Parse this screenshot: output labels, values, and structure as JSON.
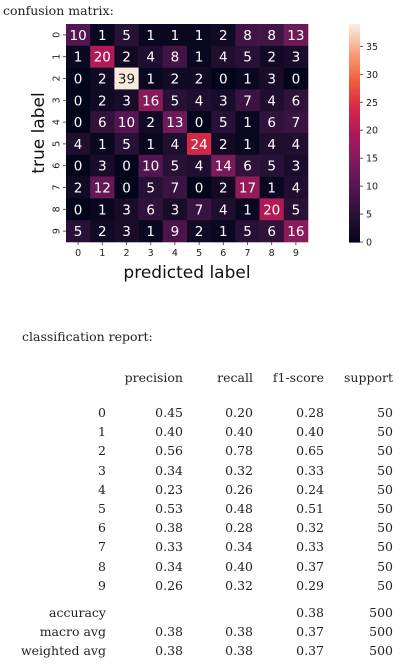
{
  "cm_caption": "confusion matrix:",
  "report_caption": "classification report:",
  "chart_data": {
    "type": "heatmap",
    "title": "",
    "xlabel": "predicted label",
    "ylabel": "true label",
    "x_categories": [
      "0",
      "1",
      "2",
      "3",
      "4",
      "5",
      "6",
      "7",
      "8",
      "9"
    ],
    "y_categories": [
      "0",
      "1",
      "2",
      "3",
      "4",
      "5",
      "6",
      "7",
      "8",
      "9"
    ],
    "matrix": [
      [
        10,
        1,
        5,
        1,
        1,
        1,
        2,
        8,
        8,
        13
      ],
      [
        1,
        20,
        2,
        4,
        8,
        1,
        4,
        5,
        2,
        3
      ],
      [
        0,
        2,
        39,
        1,
        2,
        2,
        0,
        1,
        3,
        0
      ],
      [
        0,
        2,
        3,
        16,
        5,
        4,
        3,
        7,
        4,
        6
      ],
      [
        0,
        6,
        10,
        2,
        13,
        0,
        5,
        1,
        6,
        7
      ],
      [
        4,
        1,
        5,
        1,
        4,
        24,
        2,
        1,
        4,
        4
      ],
      [
        0,
        3,
        0,
        10,
        5,
        4,
        14,
        6,
        5,
        3
      ],
      [
        2,
        12,
        0,
        5,
        7,
        0,
        2,
        17,
        1,
        4
      ],
      [
        0,
        1,
        3,
        6,
        3,
        7,
        4,
        1,
        20,
        5
      ],
      [
        5,
        2,
        3,
        1,
        9,
        2,
        1,
        5,
        6,
        16
      ]
    ],
    "colorbar": {
      "min": 0,
      "max": 39,
      "ticks": [
        0,
        5,
        10,
        15,
        20,
        25,
        30,
        35
      ],
      "colormap": "rocket",
      "low_color": "#03051a",
      "high_color": "#faebdd"
    }
  },
  "report": {
    "headers": [
      "precision",
      "recall",
      "f1-score",
      "support"
    ],
    "rows": [
      {
        "label": "0",
        "precision": "0.45",
        "recall": "0.20",
        "f1": "0.28",
        "support": "50"
      },
      {
        "label": "1",
        "precision": "0.40",
        "recall": "0.40",
        "f1": "0.40",
        "support": "50"
      },
      {
        "label": "2",
        "precision": "0.56",
        "recall": "0.78",
        "f1": "0.65",
        "support": "50"
      },
      {
        "label": "3",
        "precision": "0.34",
        "recall": "0.32",
        "f1": "0.33",
        "support": "50"
      },
      {
        "label": "4",
        "precision": "0.23",
        "recall": "0.26",
        "f1": "0.24",
        "support": "50"
      },
      {
        "label": "5",
        "precision": "0.53",
        "recall": "0.48",
        "f1": "0.51",
        "support": "50"
      },
      {
        "label": "6",
        "precision": "0.38",
        "recall": "0.28",
        "f1": "0.32",
        "support": "50"
      },
      {
        "label": "7",
        "precision": "0.33",
        "recall": "0.34",
        "f1": "0.33",
        "support": "50"
      },
      {
        "label": "8",
        "precision": "0.34",
        "recall": "0.40",
        "f1": "0.37",
        "support": "50"
      },
      {
        "label": "9",
        "precision": "0.26",
        "recall": "0.32",
        "f1": "0.29",
        "support": "50"
      }
    ],
    "summary": [
      {
        "label": "accuracy",
        "precision": "",
        "recall": "",
        "f1": "0.38",
        "support": "500"
      },
      {
        "label": "macro avg",
        "precision": "0.38",
        "recall": "0.38",
        "f1": "0.37",
        "support": "500"
      },
      {
        "label": "weighted avg",
        "precision": "0.38",
        "recall": "0.38",
        "f1": "0.37",
        "support": "500"
      }
    ]
  }
}
